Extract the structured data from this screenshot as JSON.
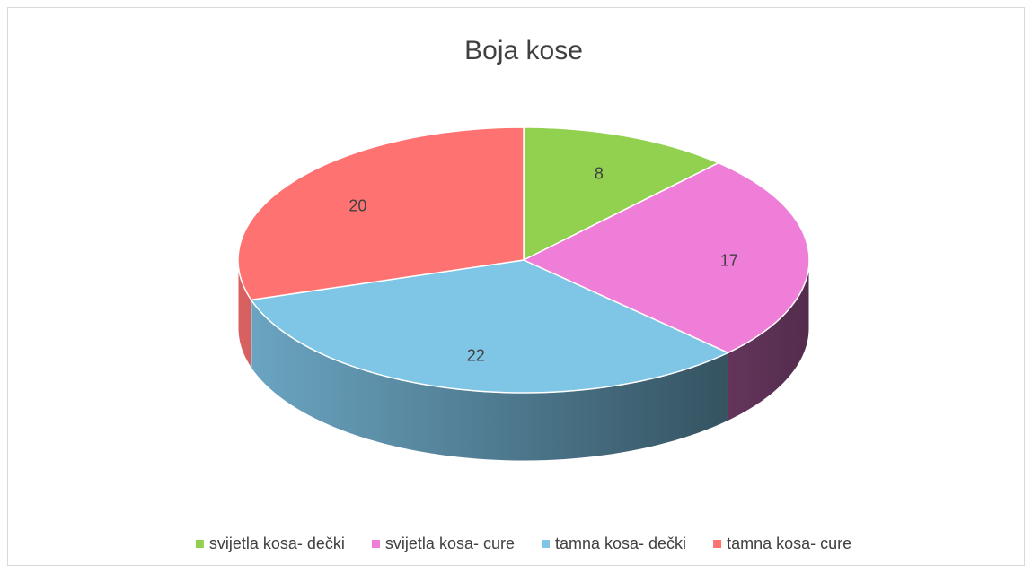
{
  "chart_data": {
    "type": "pie3d",
    "title": "Boja kose",
    "categories": [
      "svijetla kosa- dečki",
      "svijetla kosa- cure",
      "tamna kosa- dečki",
      "tamna kosa- cure"
    ],
    "values": [
      8,
      17,
      22,
      20
    ],
    "colors": [
      "#92d050",
      "#ee7ed8",
      "#7fc5e6",
      "#ff7272"
    ],
    "legend": "bottom"
  }
}
